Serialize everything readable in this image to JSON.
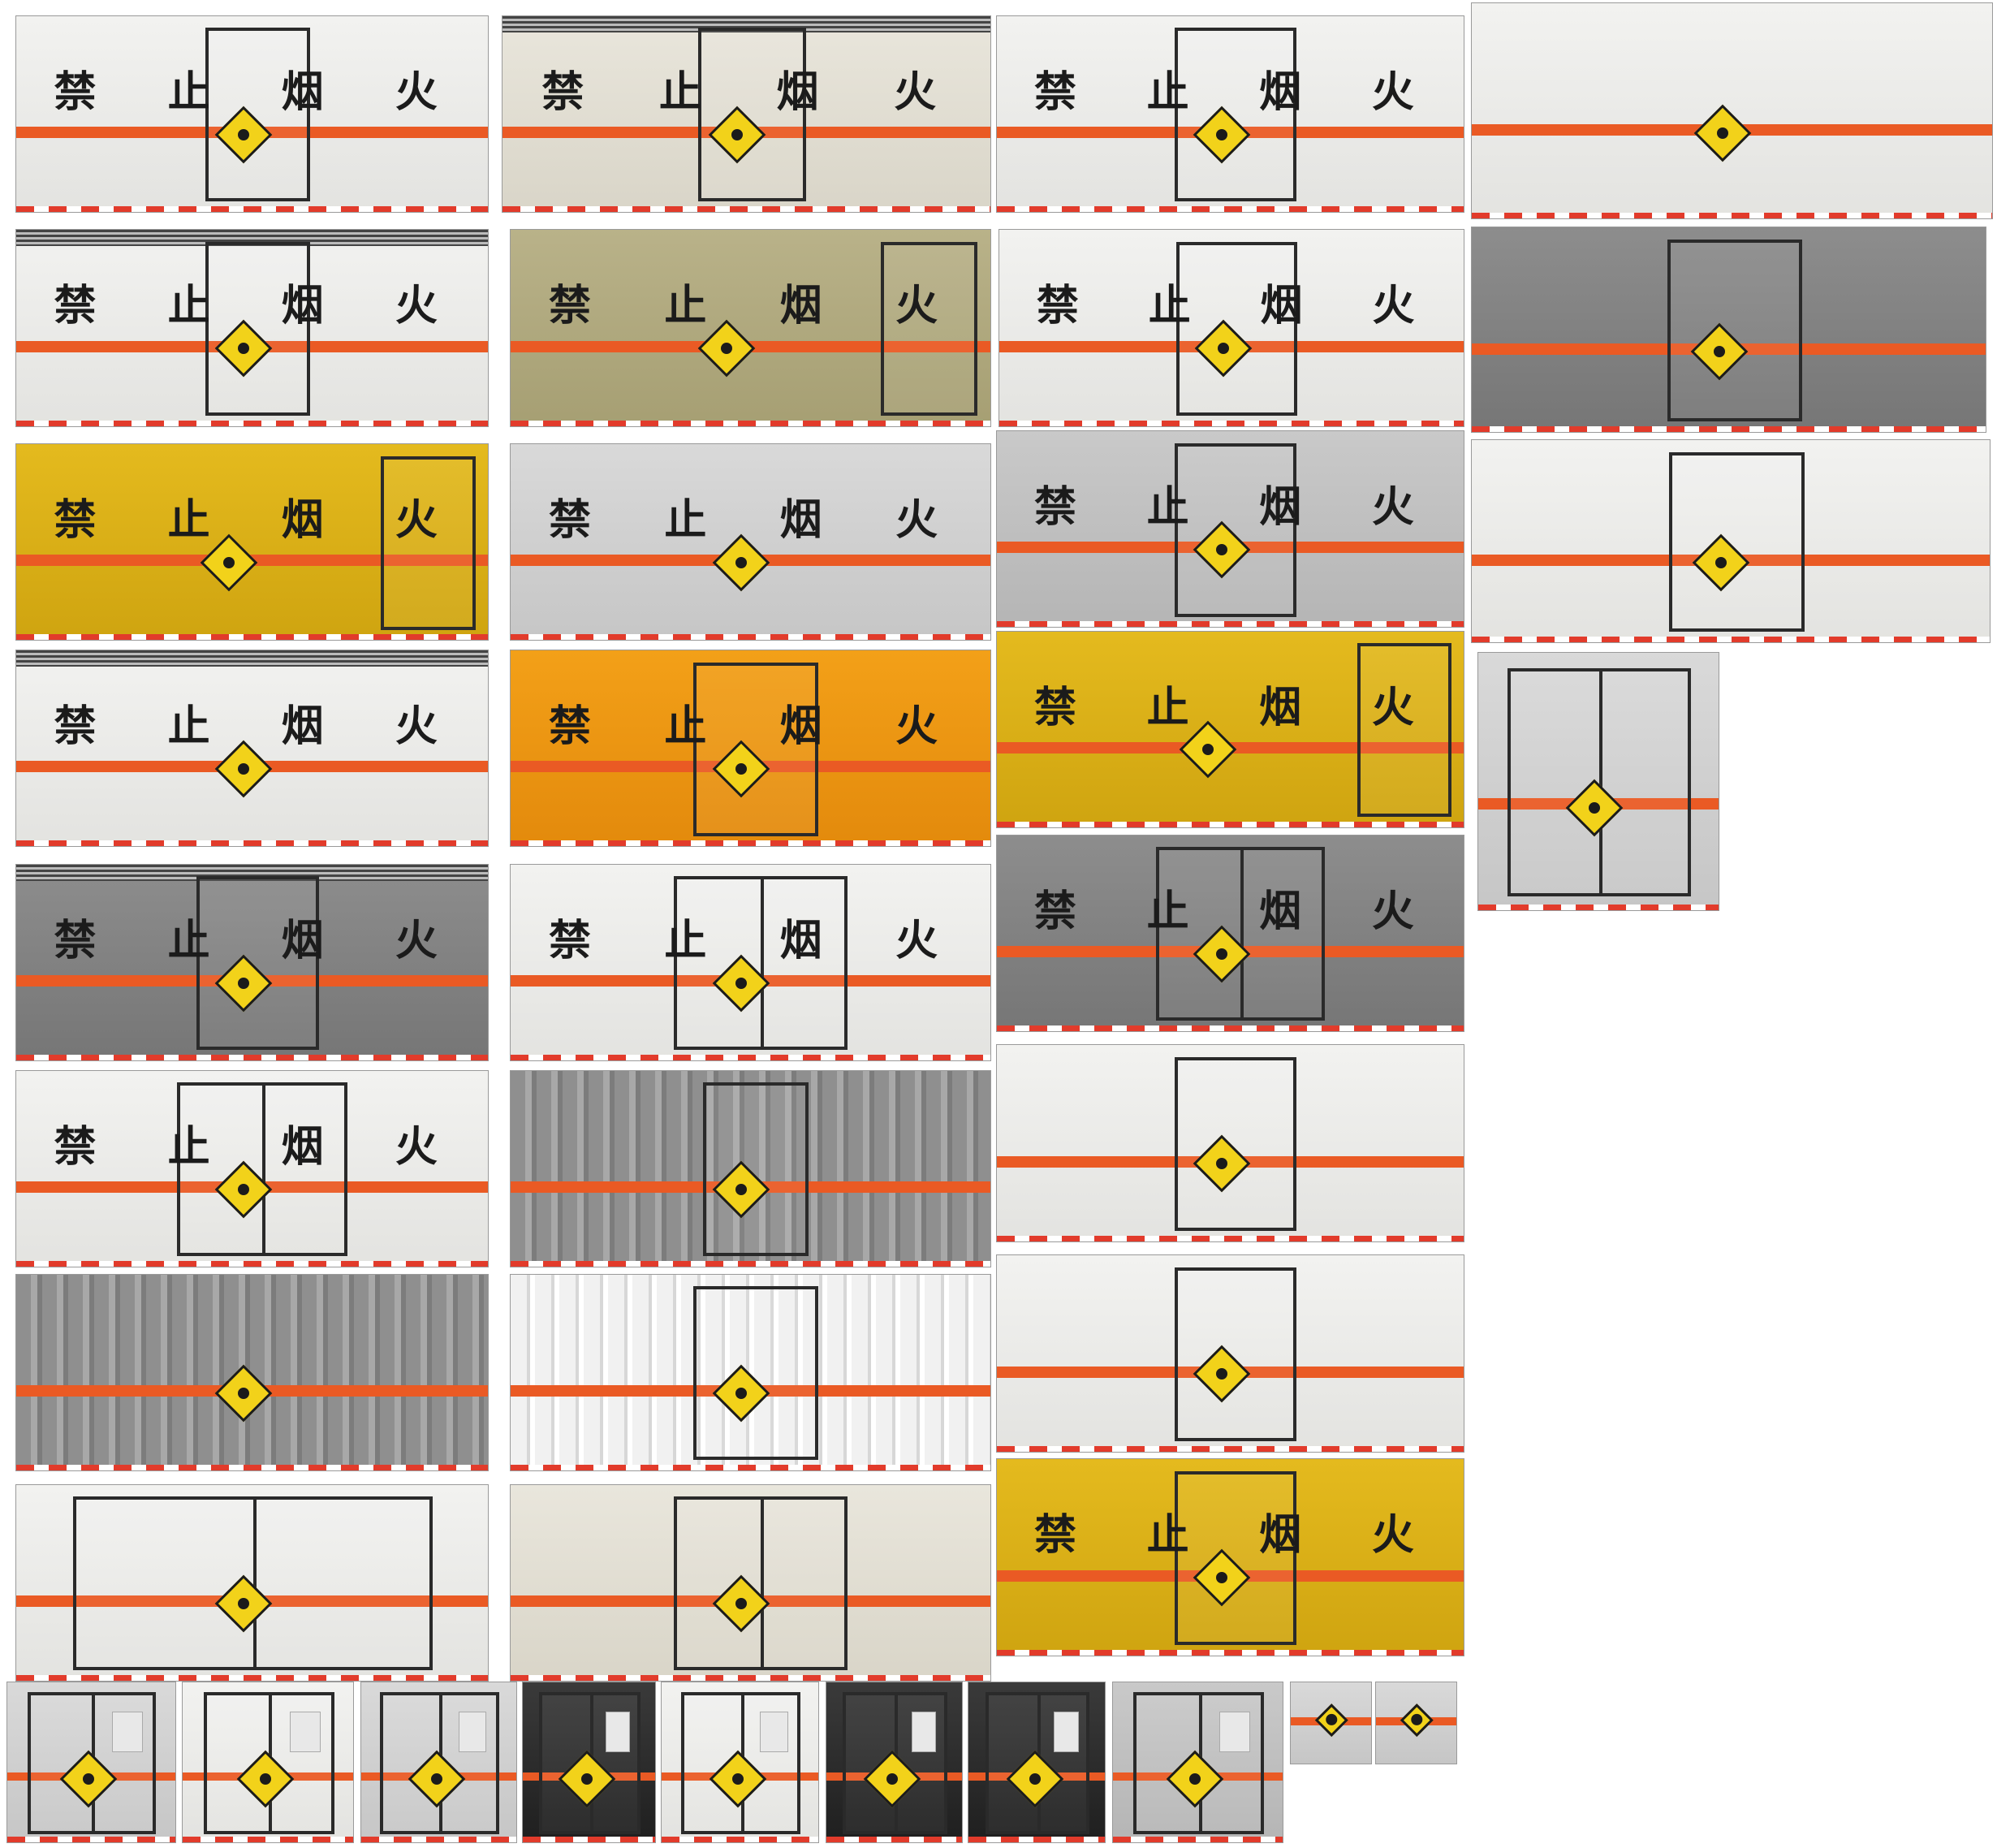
{
  "signs": {
    "no_fire_1": "禁",
    "no_fire_2": "止",
    "no_fire_3": "烟",
    "no_fire_4": "火"
  },
  "colors": {
    "stripe": "#ea5a24",
    "hazard_diamond": "#f2d21a",
    "door_frame": "#2a2a2a"
  },
  "icon": "hazard-diamond-icon"
}
